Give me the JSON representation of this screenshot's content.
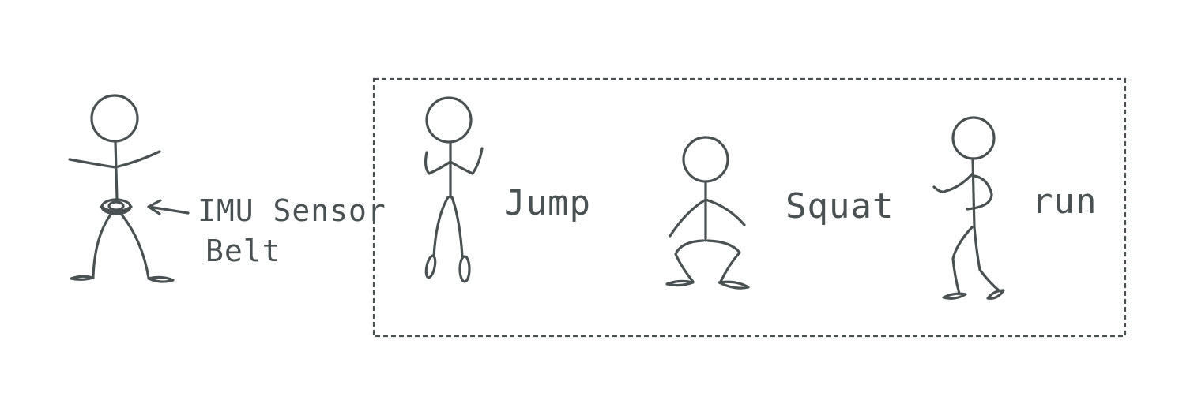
{
  "labels": {
    "sensor_line1": "IMU Sensor",
    "sensor_line2": "Belt",
    "jump": "Jump",
    "squat": "Squat",
    "run": "run"
  },
  "colors": {
    "ink": "#4a5152",
    "background": "#ffffff"
  }
}
